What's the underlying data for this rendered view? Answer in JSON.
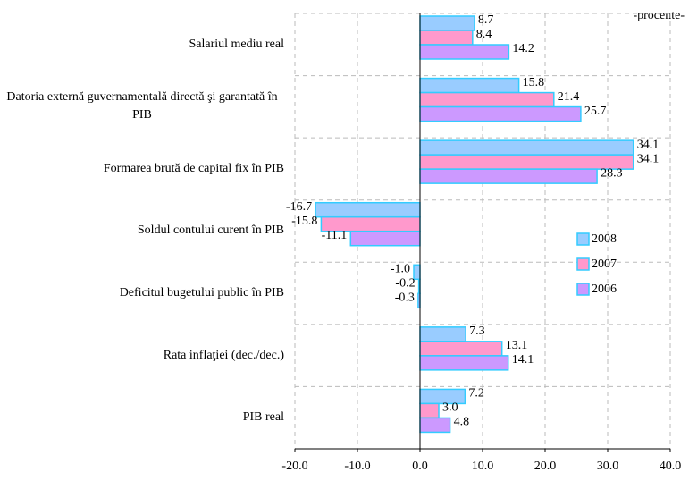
{
  "chart_data": {
    "type": "bar",
    "orientation": "horizontal",
    "annotation": "-procente-",
    "categories": [
      "Salariul mediu real",
      "Datoria externă guvernamentală directă şi garantată în PIB",
      "Formarea brută de capital fix în PIB",
      "Soldul contului curent în PIB",
      "Deficitul bugetului public în PIB",
      "Rata inflaţiei (dec./dec.)",
      "PIB real"
    ],
    "series": [
      {
        "name": "2008",
        "color": "#99ccff",
        "values": [
          8.7,
          15.8,
          34.1,
          -16.7,
          -1.0,
          7.3,
          7.2
        ],
        "value_labels": [
          "8.7",
          "15.8",
          "34.1",
          "-16.7",
          "-1.0",
          "7.3",
          "7.2"
        ]
      },
      {
        "name": "2007",
        "color": "#ff99cc",
        "values": [
          8.4,
          21.4,
          34.1,
          -15.8,
          -0.2,
          13.1,
          3.0
        ],
        "value_labels": [
          "8.4",
          "21.4",
          "34.1",
          "-15.8",
          "-0.2",
          "13.1",
          "3.0"
        ]
      },
      {
        "name": "2006",
        "color": "#cc99ff",
        "values": [
          14.2,
          25.7,
          28.3,
          -11.1,
          -0.3,
          14.1,
          4.8
        ],
        "value_labels": [
          "14.2",
          "25.7",
          "28.3",
          "-11.1",
          "-0.3",
          "14.1",
          "4.8"
        ]
      }
    ],
    "bar_edge_color": "#33ccff",
    "xlim": [
      -20,
      40
    ],
    "xticks": [
      {
        "value": -20,
        "label": "-20.0"
      },
      {
        "value": -10,
        "label": "-10.0"
      },
      {
        "value": 0,
        "label": "0.0"
      },
      {
        "value": 10,
        "label": "10.0"
      },
      {
        "value": 20,
        "label": "20.0"
      },
      {
        "value": 30,
        "label": "30.0"
      },
      {
        "value": 40,
        "label": "40.0"
      }
    ],
    "grid": true,
    "legend": "right"
  }
}
